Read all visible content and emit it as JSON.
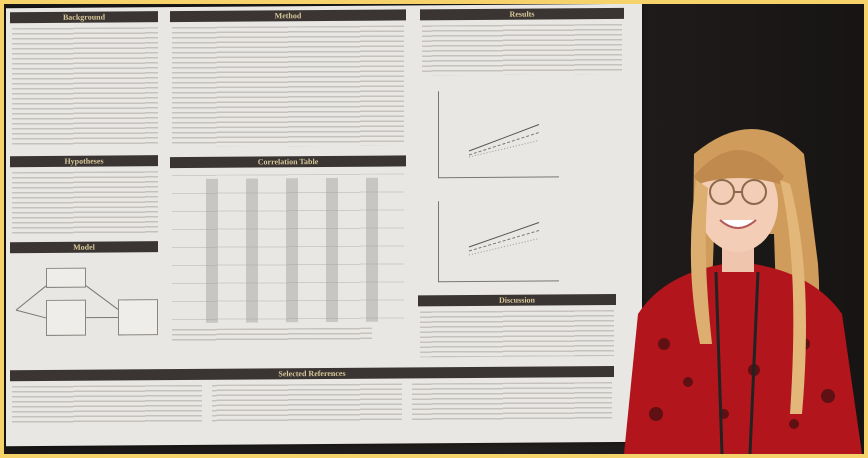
{
  "poster": {
    "sections": {
      "background": "Background",
      "method": "Method",
      "results": "Results",
      "hypotheses": "Hypotheses",
      "correlation_table": "Correlation Table",
      "model": "Model",
      "discussion": "Discussion",
      "references": "Selected References"
    }
  },
  "colors": {
    "frame": "#f5d36a",
    "poster": "#e9e7e4",
    "header_bar": "#3a3532",
    "header_text": "#d8c79a",
    "blouse": "#b3151c",
    "hair": "#d9a968",
    "background_wall": "#1f1b1a"
  }
}
